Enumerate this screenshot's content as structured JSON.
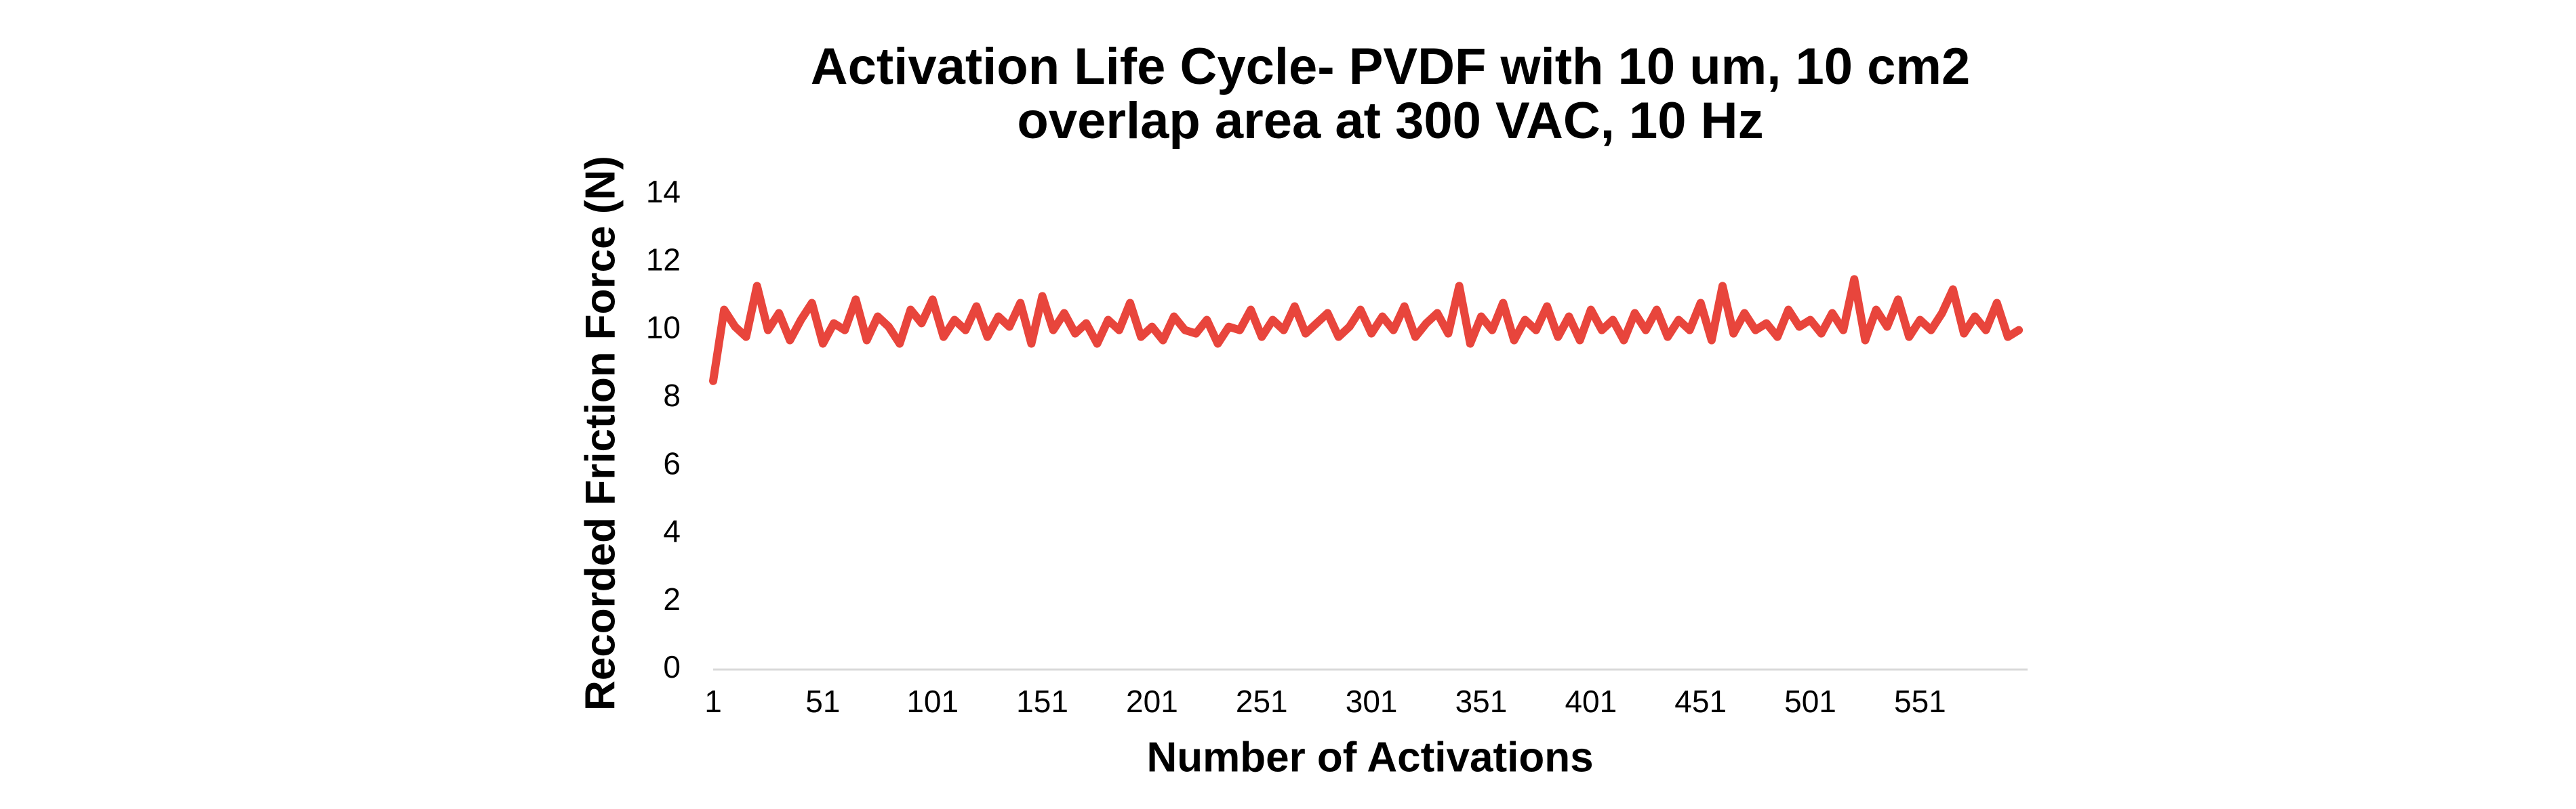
{
  "chart_data": {
    "type": "line",
    "title": [
      "Activation Life Cycle- PVDF with 10 um, 10 cm2",
      "overlap area at 300 VAC, 10 Hz"
    ],
    "x_label": "Number of Activations",
    "y_label": "Recorded Friction Force (N)",
    "xlim": [
      1,
      600
    ],
    "xticks": [
      1,
      51,
      101,
      151,
      201,
      251,
      301,
      351,
      401,
      451,
      501,
      551
    ],
    "ylim": [
      0,
      14
    ],
    "yticks": [
      0,
      2,
      4,
      6,
      8,
      10,
      12,
      14
    ],
    "grid": false,
    "series": [
      {
        "color": "#e8453c",
        "x": [
          1,
          6,
          11,
          16,
          21,
          26,
          31,
          36,
          41,
          46,
          51,
          56,
          61,
          66,
          71,
          76,
          81,
          86,
          91,
          96,
          101,
          106,
          111,
          116,
          121,
          126,
          131,
          136,
          141,
          146,
          151,
          156,
          161,
          166,
          171,
          176,
          181,
          186,
          191,
          196,
          201,
          206,
          211,
          216,
          221,
          226,
          231,
          236,
          241,
          246,
          251,
          256,
          261,
          266,
          271,
          276,
          281,
          286,
          291,
          296,
          301,
          306,
          311,
          316,
          321,
          326,
          331,
          336,
          341,
          346,
          351,
          356,
          361,
          366,
          371,
          376,
          381,
          386,
          391,
          396,
          401,
          406,
          411,
          416,
          421,
          426,
          431,
          436,
          441,
          446,
          451,
          456,
          461,
          466,
          471,
          476,
          481,
          486,
          491,
          496,
          501,
          506,
          511,
          516,
          521,
          526,
          531,
          536,
          541,
          546,
          551,
          556,
          561,
          566,
          571,
          576,
          581,
          586,
          591,
          596
        ],
        "values": [
          8.5,
          10.6,
          10.1,
          9.8,
          11.3,
          10.0,
          10.5,
          9.7,
          10.3,
          10.8,
          9.6,
          10.2,
          10.0,
          10.9,
          9.7,
          10.4,
          10.1,
          9.6,
          10.6,
          10.2,
          10.9,
          9.8,
          10.3,
          10.0,
          10.7,
          9.8,
          10.4,
          10.1,
          10.8,
          9.6,
          11.0,
          10.0,
          10.5,
          9.9,
          10.2,
          9.6,
          10.3,
          10.0,
          10.8,
          9.8,
          10.1,
          9.7,
          10.4,
          10.0,
          9.9,
          10.3,
          9.6,
          10.1,
          10.0,
          10.6,
          9.8,
          10.3,
          10.0,
          10.7,
          9.9,
          10.2,
          10.5,
          9.8,
          10.1,
          10.6,
          9.9,
          10.4,
          10.0,
          10.7,
          9.8,
          10.2,
          10.5,
          9.9,
          11.3,
          9.6,
          10.4,
          10.0,
          10.8,
          9.7,
          10.3,
          10.0,
          10.7,
          9.8,
          10.4,
          9.7,
          10.6,
          10.0,
          10.3,
          9.7,
          10.5,
          10.0,
          10.6,
          9.8,
          10.3,
          10.0,
          10.8,
          9.7,
          11.3,
          9.9,
          10.5,
          10.0,
          10.2,
          9.8,
          10.6,
          10.1,
          10.3,
          9.9,
          10.5,
          10.0,
          11.5,
          9.7,
          10.6,
          10.1,
          10.9,
          9.8,
          10.3,
          10.0,
          10.5,
          11.2,
          9.9,
          10.4,
          10.0,
          10.8,
          9.8,
          10.0
        ]
      }
    ]
  }
}
